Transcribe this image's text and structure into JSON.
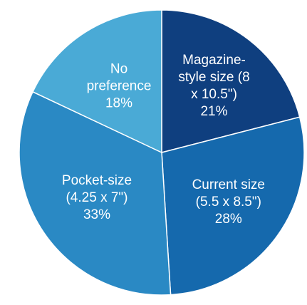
{
  "chart_data": {
    "type": "pie",
    "title": "",
    "start_angle_deg": 0,
    "direction": "clockwise",
    "legend": "none",
    "slices": [
      {
        "label_lines": [
          "Magazine-",
          "style size (8",
          "x 10.5\")"
        ],
        "category": "Magazine-style size (8 x 10.5\")",
        "value": 21,
        "value_label": "21%",
        "color": "#0f3f7f"
      },
      {
        "label_lines": [
          "Current size",
          "(5.5 x 8.5\")"
        ],
        "category": "Current size (5.5 x 8.5\")",
        "value": 28,
        "value_label": "28%",
        "color": "#1569ad"
      },
      {
        "label_lines": [
          "Pocket-size",
          "(4.25 x 7\")"
        ],
        "category": "Pocket-size (4.25 x 7\")",
        "value": 33,
        "value_label": "33%",
        "color": "#2a89c4"
      },
      {
        "label_lines": [
          "No",
          "preference"
        ],
        "category": "No preference",
        "value": 18,
        "value_label": "18%",
        "color": "#4aaad6"
      }
    ]
  }
}
